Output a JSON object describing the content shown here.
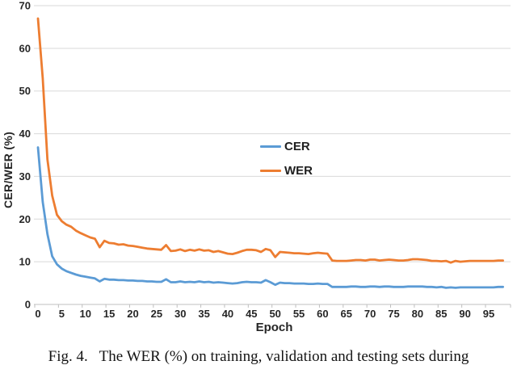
{
  "figure": {
    "caption": "Fig. 4.   The WER (%) on training, validation and testing sets during"
  },
  "chart_data": {
    "type": "line",
    "title": "",
    "xlabel": "Epoch",
    "ylabel": "CER/WER (%)",
    "xlim": [
      0,
      99.5
    ],
    "ylim": [
      0,
      70
    ],
    "x_ticks": [
      0,
      5,
      10,
      15,
      20,
      25,
      30,
      35,
      40,
      45,
      50,
      55,
      60,
      65,
      70,
      75,
      80,
      85,
      90,
      95
    ],
    "y_ticks": [
      0,
      10,
      20,
      30,
      40,
      50,
      60,
      70
    ],
    "grid": "horizontal",
    "legend_position": "inside-center",
    "x_range": [
      0,
      98
    ],
    "x_step": 1,
    "colors": {
      "cer_line": "#5B9BD5",
      "wer_line": "#ED7D31",
      "gridline": "#D9D9D9",
      "axis": "#BFBFBF",
      "tick_label": "#262626"
    },
    "series": [
      {
        "name": "CER",
        "color": "#5B9BD5",
        "values": [
          36.8,
          24,
          16.5,
          11.3,
          9.4,
          8.4,
          7.8,
          7.4,
          7.0,
          6.7,
          6.5,
          6.3,
          6.1,
          5.4,
          6.0,
          5.8,
          5.8,
          5.7,
          5.7,
          5.6,
          5.6,
          5.5,
          5.5,
          5.4,
          5.4,
          5.3,
          5.3,
          5.9,
          5.2,
          5.2,
          5.4,
          5.2,
          5.3,
          5.2,
          5.4,
          5.2,
          5.3,
          5.1,
          5.2,
          5.1,
          5.0,
          4.9,
          5.0,
          5.2,
          5.3,
          5.2,
          5.2,
          5.1,
          5.7,
          5.2,
          4.6,
          5.1,
          5.0,
          5.0,
          4.9,
          4.9,
          4.9,
          4.8,
          4.8,
          4.9,
          4.8,
          4.8,
          4.1,
          4.1,
          4.1,
          4.1,
          4.2,
          4.2,
          4.1,
          4.1,
          4.2,
          4.2,
          4.1,
          4.2,
          4.2,
          4.1,
          4.1,
          4.1,
          4.2,
          4.2,
          4.2,
          4.2,
          4.1,
          4.1,
          4.0,
          4.1,
          3.9,
          4.0,
          3.9,
          4.0,
          4.0,
          4.0,
          4.0,
          4.0,
          4.0,
          4.0,
          4.0,
          4.1,
          4.1
        ]
      },
      {
        "name": "WER",
        "color": "#ED7D31",
        "values": [
          67,
          53,
          34,
          25.5,
          21,
          19.5,
          18.7,
          18.2,
          17.3,
          16.7,
          16.2,
          15.7,
          15.4,
          13.4,
          14.9,
          14.4,
          14.3,
          14.0,
          14.1,
          13.8,
          13.7,
          13.5,
          13.3,
          13.1,
          13.0,
          12.9,
          12.8,
          13.9,
          12.5,
          12.6,
          12.9,
          12.5,
          12.8,
          12.6,
          12.9,
          12.6,
          12.7,
          12.3,
          12.5,
          12.2,
          11.9,
          11.8,
          12.1,
          12.5,
          12.8,
          12.8,
          12.7,
          12.3,
          13.0,
          12.7,
          11.1,
          12.3,
          12.2,
          12.1,
          12.0,
          12.0,
          11.9,
          11.8,
          12.0,
          12.1,
          12.0,
          11.9,
          10.3,
          10.2,
          10.2,
          10.2,
          10.3,
          10.4,
          10.4,
          10.3,
          10.5,
          10.5,
          10.3,
          10.4,
          10.5,
          10.4,
          10.3,
          10.3,
          10.4,
          10.6,
          10.6,
          10.5,
          10.4,
          10.2,
          10.2,
          10.1,
          10.2,
          9.8,
          10.2,
          10.0,
          10.1,
          10.2,
          10.2,
          10.2,
          10.2,
          10.2,
          10.2,
          10.3,
          10.3
        ]
      }
    ]
  }
}
